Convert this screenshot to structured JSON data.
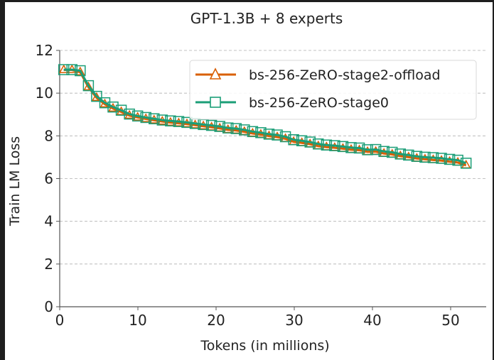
{
  "chart_data": {
    "type": "line",
    "title": "GPT-1.3B + 8 experts",
    "xlabel": "Tokens (in millions)",
    "ylabel": "Train LM Loss",
    "xlim": [
      0,
      54.5
    ],
    "ylim": [
      0,
      12
    ],
    "xticks": [
      0,
      10,
      20,
      30,
      40,
      50
    ],
    "xtick_labels": [
      "0",
      "10",
      "20",
      "30",
      "40",
      "50"
    ],
    "yticks": [
      0,
      2,
      4,
      6,
      8,
      10,
      12
    ],
    "ytick_labels": [
      "0",
      "2",
      "4",
      "6",
      "8",
      "10",
      "12"
    ],
    "grid": "y-dashed",
    "legend_position": "top-right",
    "x": [
      0.52,
      1.57,
      2.62,
      3.67,
      4.72,
      5.77,
      6.82,
      7.87,
      8.92,
      9.97,
      11.02,
      12.07,
      13.12,
      14.17,
      15.22,
      16.27,
      17.32,
      18.37,
      19.42,
      20.47,
      21.52,
      22.57,
      23.62,
      24.67,
      25.72,
      26.77,
      27.82,
      28.87,
      29.92,
      30.97,
      32.02,
      33.07,
      34.12,
      35.17,
      36.22,
      37.27,
      38.32,
      39.37,
      40.42,
      41.47,
      42.52,
      43.57,
      44.62,
      45.67,
      46.72,
      47.77,
      48.82,
      49.87,
      50.92,
      51.97
    ],
    "series": [
      {
        "name": "bs-256-ZeRO-stage2-offload",
        "color": "#d95f02",
        "marker": "triangle",
        "values": [
          11.08,
          11.08,
          10.98,
          10.28,
          9.78,
          9.48,
          9.28,
          9.12,
          8.95,
          8.86,
          8.79,
          8.73,
          8.67,
          8.62,
          8.59,
          8.55,
          8.5,
          8.45,
          8.4,
          8.35,
          8.28,
          8.25,
          8.19,
          8.11,
          8.06,
          7.99,
          7.94,
          7.86,
          7.72,
          7.67,
          7.61,
          7.52,
          7.47,
          7.44,
          7.4,
          7.35,
          7.33,
          7.25,
          7.26,
          7.17,
          7.13,
          7.05,
          7.0,
          6.94,
          6.9,
          6.87,
          6.84,
          6.79,
          6.75,
          6.62
        ]
      },
      {
        "name": "bs-256-ZeRO-stage0",
        "color": "#1b9e77",
        "marker": "square",
        "values": [
          11.1,
          11.1,
          11.05,
          10.35,
          9.85,
          9.55,
          9.35,
          9.2,
          9.02,
          8.93,
          8.86,
          8.8,
          8.74,
          8.7,
          8.67,
          8.63,
          8.58,
          8.53,
          8.49,
          8.44,
          8.37,
          8.34,
          8.28,
          8.2,
          8.15,
          8.08,
          8.04,
          7.96,
          7.82,
          7.77,
          7.71,
          7.62,
          7.57,
          7.54,
          7.5,
          7.45,
          7.43,
          7.35,
          7.36,
          7.27,
          7.23,
          7.15,
          7.1,
          7.04,
          7.0,
          6.98,
          6.95,
          6.9,
          6.86,
          6.72
        ]
      }
    ]
  }
}
